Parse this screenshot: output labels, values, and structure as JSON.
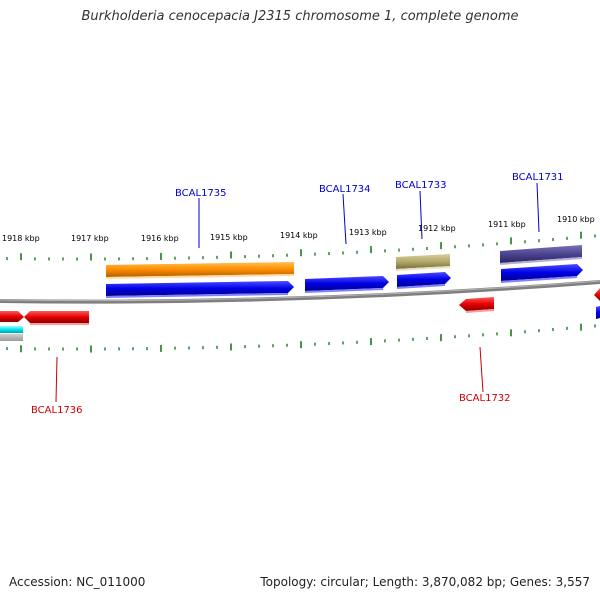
{
  "title": "Burkholderia cenocepacia J2315 chromosome 1, complete genome",
  "kbp_ticks": [
    "1918 kbp",
    "1917 kbp",
    "1916 kbp",
    "1915 kbp",
    "1914 kbp",
    "1913 kbp",
    "1912 kbp",
    "1911 kbp",
    "1910 kbp"
  ],
  "gene_labels_top": [
    "BCAL1735",
    "BCAL1734",
    "BCAL1733",
    "BCAL1731"
  ],
  "gene_labels_bottom": [
    "BCAL1736",
    "BCAL1732"
  ],
  "footer": {
    "accession": "Accession: NC_011000",
    "info": "Topology: circular; Length: 3,870,082 bp; Genes: 3,557"
  },
  "colors": {
    "forward_label": "#0000cc",
    "reverse_label": "#cc0000",
    "tick": "#1a7a1a",
    "backbone": "#7f7f7f"
  }
}
